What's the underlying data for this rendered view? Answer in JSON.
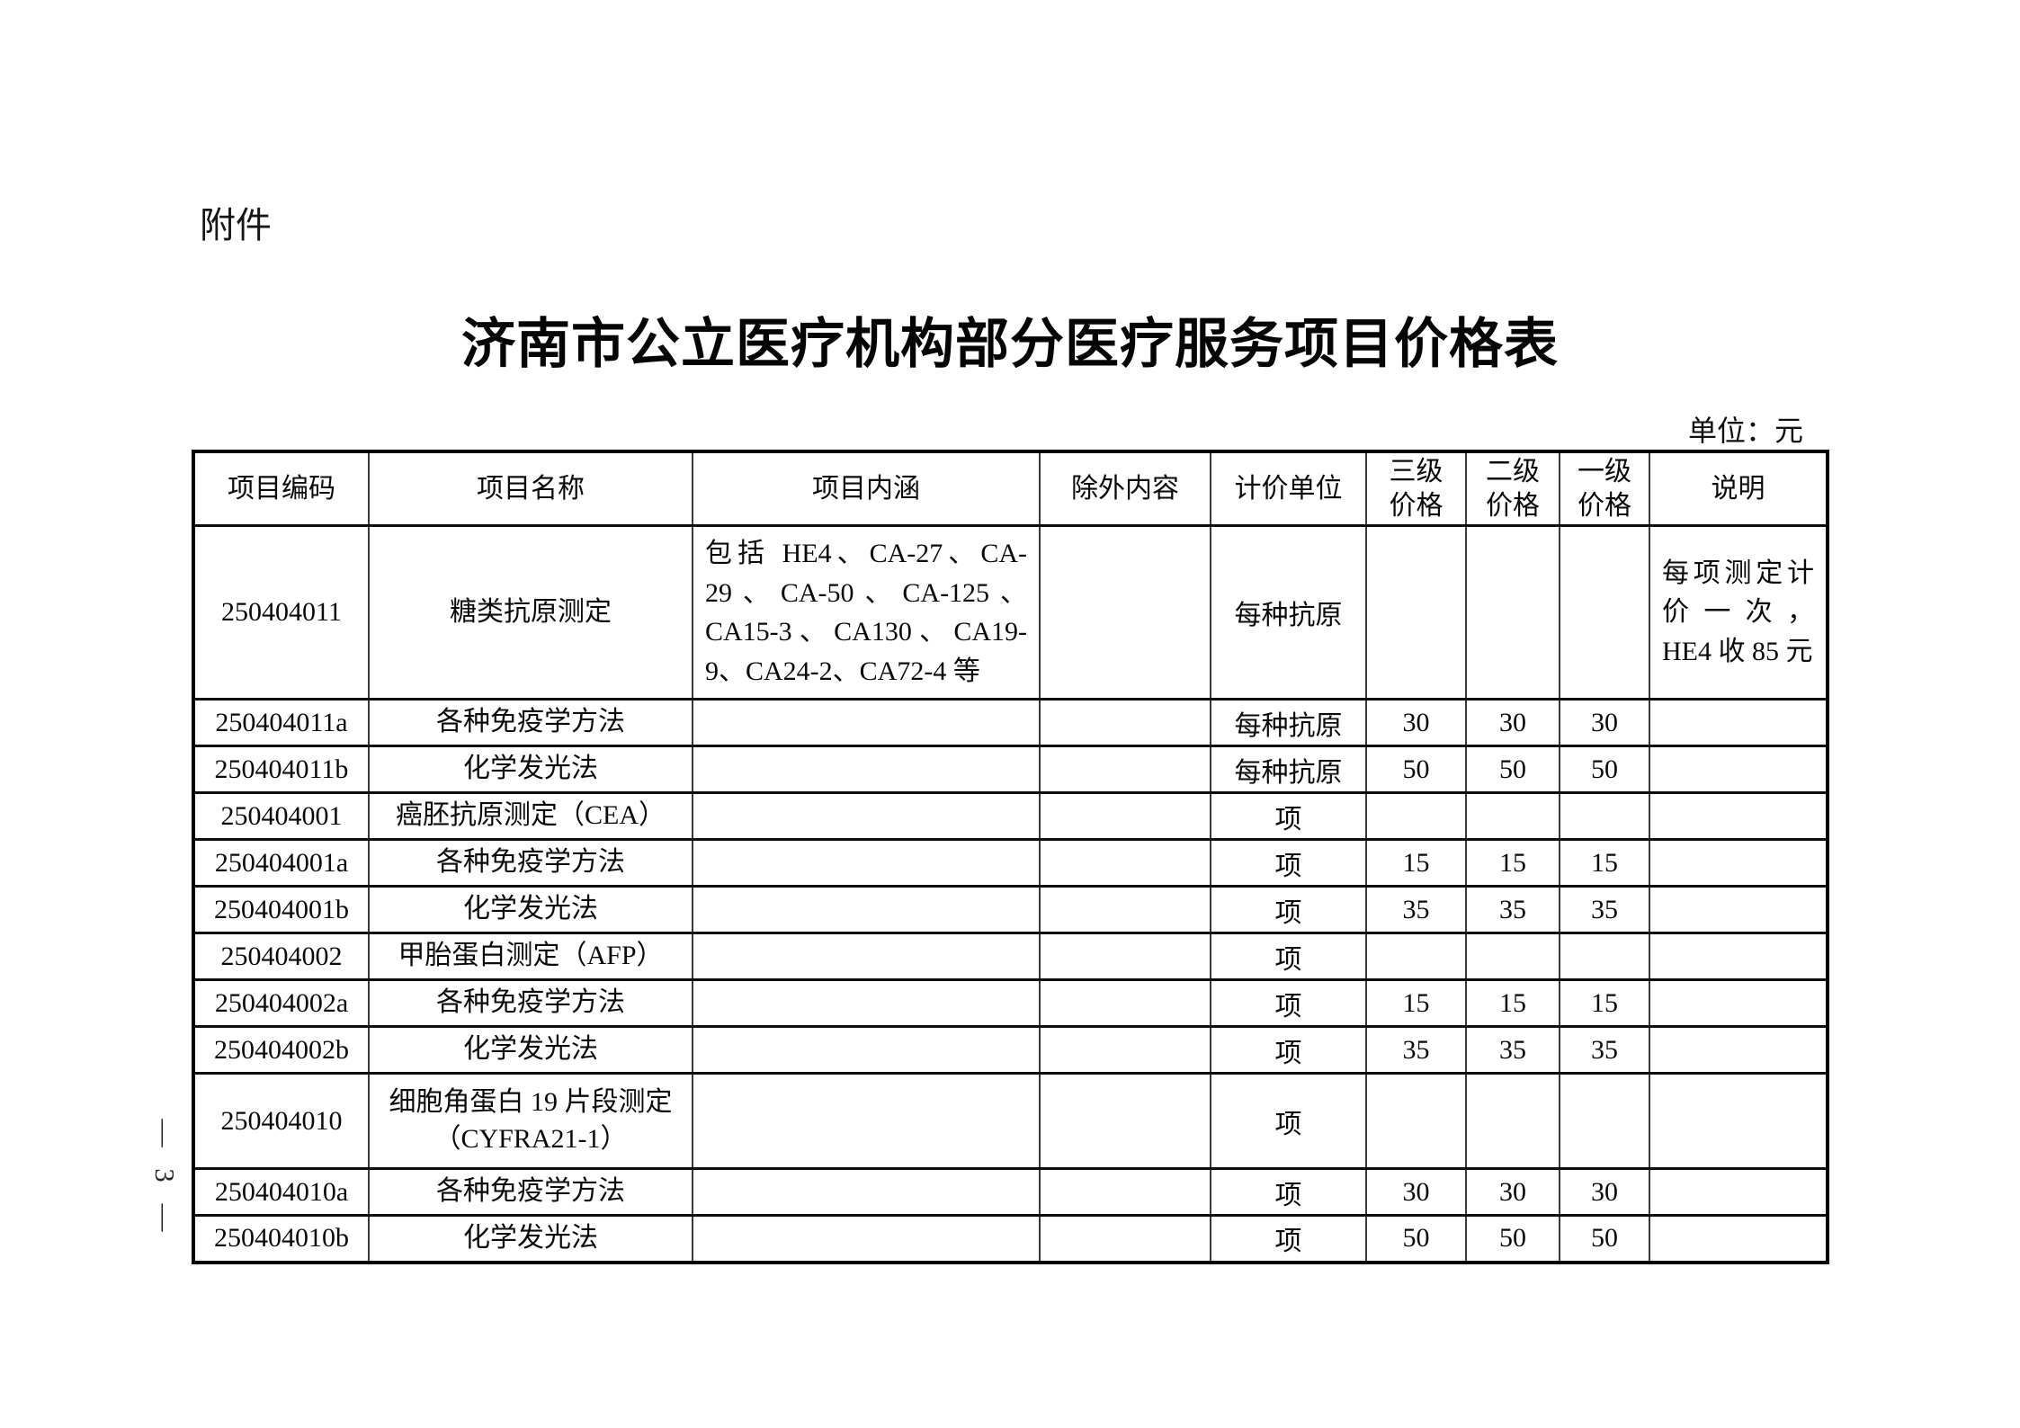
{
  "page": {
    "attachment_label": "附件",
    "title": "济南市公立医疗机构部分医疗服务项目价格表",
    "unit_note": "单位：元",
    "page_number": "— 3 —"
  },
  "table": {
    "headers": [
      "项目编码",
      "项目名称",
      "项目内涵",
      "除外内容",
      "计价单位",
      "三级\n价格",
      "二级\n价格",
      "一级\n价格",
      "说明"
    ],
    "rows": [
      {
        "code": "250404011",
        "name": "糖类抗原测定",
        "content": "包括 HE4、CA-27、CA-29、CA-50、CA-125、CA15-3、CA130、CA19-9、CA24-2、CA72-4 等",
        "exclusion": "",
        "unit": "每种抗原",
        "price3": "",
        "price2": "",
        "price1": "",
        "note": "每项测定计价一次，HE4 收 85 元"
      },
      {
        "code": "250404011a",
        "name": "各种免疫学方法",
        "content": "",
        "exclusion": "",
        "unit": "每种抗原",
        "price3": "30",
        "price2": "30",
        "price1": "30",
        "note": ""
      },
      {
        "code": "250404011b",
        "name": "化学发光法",
        "content": "",
        "exclusion": "",
        "unit": "每种抗原",
        "price3": "50",
        "price2": "50",
        "price1": "50",
        "note": ""
      },
      {
        "code": "250404001",
        "name": "癌胚抗原测定（CEA）",
        "content": "",
        "exclusion": "",
        "unit": "项",
        "price3": "",
        "price2": "",
        "price1": "",
        "note": ""
      },
      {
        "code": "250404001a",
        "name": "各种免疫学方法",
        "content": "",
        "exclusion": "",
        "unit": "项",
        "price3": "15",
        "price2": "15",
        "price1": "15",
        "note": ""
      },
      {
        "code": "250404001b",
        "name": "化学发光法",
        "content": "",
        "exclusion": "",
        "unit": "项",
        "price3": "35",
        "price2": "35",
        "price1": "35",
        "note": ""
      },
      {
        "code": "250404002",
        "name": "甲胎蛋白测定（AFP）",
        "content": "",
        "exclusion": "",
        "unit": "项",
        "price3": "",
        "price2": "",
        "price1": "",
        "note": ""
      },
      {
        "code": "250404002a",
        "name": "各种免疫学方法",
        "content": "",
        "exclusion": "",
        "unit": "项",
        "price3": "15",
        "price2": "15",
        "price1": "15",
        "note": ""
      },
      {
        "code": "250404002b",
        "name": "化学发光法",
        "content": "",
        "exclusion": "",
        "unit": "项",
        "price3": "35",
        "price2": "35",
        "price1": "35",
        "note": ""
      },
      {
        "code": "250404010",
        "name": "细胞角蛋白 19 片段测定\n（CYFRA21-1）",
        "content": "",
        "exclusion": "",
        "unit": "项",
        "price3": "",
        "price2": "",
        "price1": "",
        "note": ""
      },
      {
        "code": "250404010a",
        "name": "各种免疫学方法",
        "content": "",
        "exclusion": "",
        "unit": "项",
        "price3": "30",
        "price2": "30",
        "price1": "30",
        "note": ""
      },
      {
        "code": "250404010b",
        "name": "化学发光法",
        "content": "",
        "exclusion": "",
        "unit": "项",
        "price3": "50",
        "price2": "50",
        "price1": "50",
        "note": ""
      }
    ]
  }
}
